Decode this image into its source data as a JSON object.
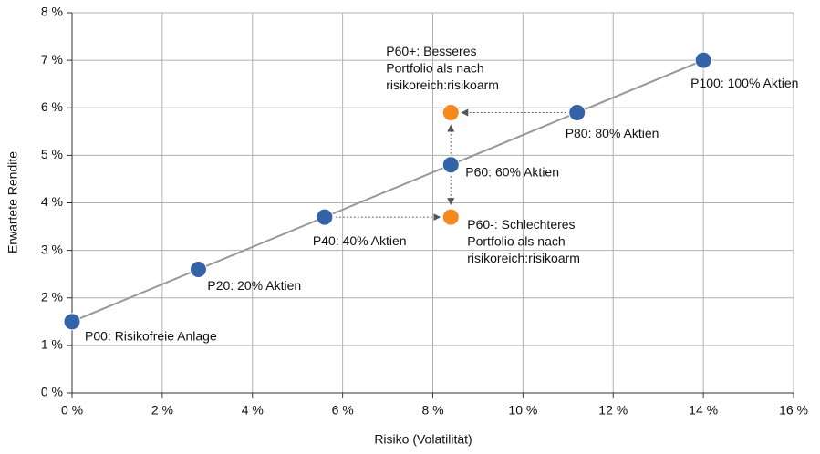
{
  "chart_data": {
    "type": "scatter",
    "x_label": "Risiko (Volatilität)",
    "y_label": "Erwartete Rendite",
    "xlim": [
      0,
      16
    ],
    "ylim": [
      0,
      8
    ],
    "grid": true,
    "xticks": [
      {
        "value": 0,
        "label": "0 %"
      },
      {
        "value": 2,
        "label": "2 %"
      },
      {
        "value": 4,
        "label": "4 %"
      },
      {
        "value": 6,
        "label": "6 %"
      },
      {
        "value": 8,
        "label": "8 %"
      },
      {
        "value": 10,
        "label": "10 %"
      },
      {
        "value": 12,
        "label": "12 %"
      },
      {
        "value": 14,
        "label": "14 %"
      },
      {
        "value": 16,
        "label": "16 %"
      }
    ],
    "yticks": [
      {
        "value": 0,
        "label": "0 %"
      },
      {
        "value": 1,
        "label": "1 %"
      },
      {
        "value": 2,
        "label": "2 %"
      },
      {
        "value": 3,
        "label": "3 %"
      },
      {
        "value": 4,
        "label": "4 %"
      },
      {
        "value": 5,
        "label": "5 %"
      },
      {
        "value": 6,
        "label": "6 %"
      },
      {
        "value": 7,
        "label": "7 %"
      },
      {
        "value": 8,
        "label": "8 %"
      }
    ],
    "series": [
      {
        "color": "#3563a8",
        "line": true,
        "x": [
          0,
          2.8,
          5.6,
          8.4,
          11.2,
          14
        ],
        "values": [
          1.5,
          2.6,
          3.7,
          4.8,
          5.9,
          7
        ],
        "labels": [
          [
            "P00: Risikofreie Anlage"
          ],
          [
            "P20: 20% Aktien"
          ],
          [
            "P40: 40% Aktien"
          ],
          [
            "P60: 60% Aktien"
          ],
          [
            "P80: 80% Aktien"
          ],
          [
            "P100: 100% Aktien"
          ]
        ]
      },
      {
        "color": "#f5881f",
        "line": false,
        "x": [
          8.4,
          8.4
        ],
        "values": [
          5.9,
          3.7
        ],
        "labels": [
          [
            "P60+: Besseres",
            "Portfolio als nach",
            "risikoreich:risikoarm"
          ],
          [
            "P60-: Schlechteres",
            "Portfolio als nach",
            "risikoreich:risikoarm"
          ]
        ]
      }
    ]
  }
}
